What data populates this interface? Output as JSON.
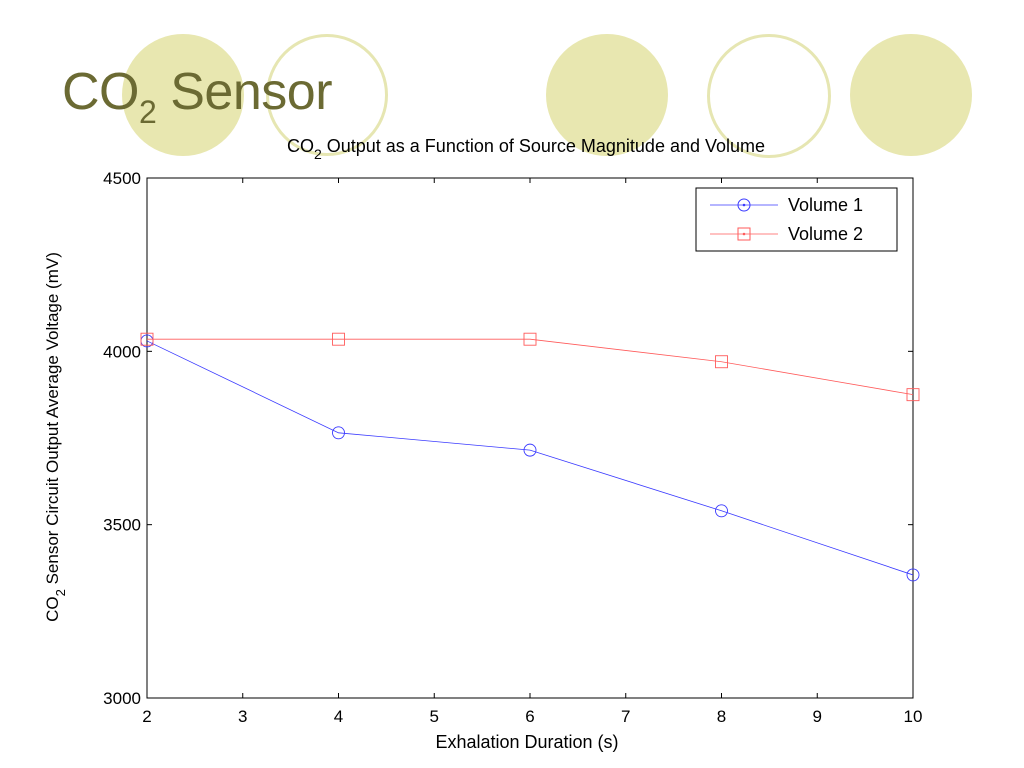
{
  "slide": {
    "title_main": "CO",
    "title_sub": "2",
    "title_rest": " Sensor"
  },
  "colors": {
    "title": "#6b6a33",
    "decor_fill": "#e8e7b0",
    "decor_ring": "#e6e6b2",
    "series_1": "#3a3aff",
    "series_2": "#ff5a5a"
  },
  "chart_data": {
    "type": "line",
    "title_parts": [
      "CO",
      "2",
      " Output as a Function of Source Magnitude and Volume"
    ],
    "xlabel": "Exhalation Duration (s)",
    "ylabel_parts": [
      "CO",
      "2",
      " Sensor Circuit Output Average Voltage (mV)"
    ],
    "xlim": [
      2,
      10
    ],
    "ylim": [
      3000,
      4500
    ],
    "x_ticks": [
      2,
      3,
      4,
      5,
      6,
      7,
      8,
      9,
      10
    ],
    "y_ticks": [
      3000,
      3500,
      4000,
      4500
    ],
    "grid": false,
    "legend_position": "top-right",
    "x": [
      2,
      4,
      6,
      8,
      10
    ],
    "series": [
      {
        "name": "Volume 1",
        "marker": "circle",
        "color": "#3a3aff",
        "values": [
          4030,
          3765,
          3715,
          3540,
          3355
        ]
      },
      {
        "name": "Volume 2",
        "marker": "square",
        "color": "#ff5a5a",
        "values": [
          4035,
          4035,
          4035,
          3970,
          3875
        ]
      }
    ]
  }
}
